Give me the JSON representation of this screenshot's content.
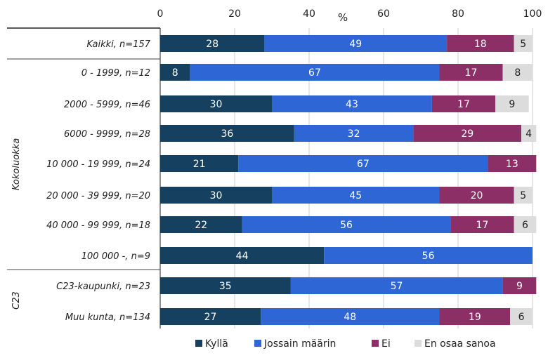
{
  "chart_data": {
    "type": "bar",
    "orientation": "horizontal",
    "stacked": true,
    "xlim": [
      0,
      100
    ],
    "xticks": [
      "0",
      "20",
      "40",
      "60",
      "80",
      "100"
    ],
    "unit": "%",
    "legend_position": "bottom",
    "groups": [
      {
        "label": "Kokoluokka",
        "categories": [
          "0 - 1999, n=12",
          "2000 - 5999, n=46",
          "6000 - 9999, n=28",
          "10 000 - 19 999, n=24",
          "20 000 - 39 999, n=20",
          "40 000 - 99 999, n=18",
          "100 000 -, n=9"
        ]
      },
      {
        "label": "C23",
        "categories": [
          "C23-kaupunki, n=23",
          "Muu kunta, n=134"
        ]
      }
    ],
    "categories": [
      "Kaikki, n=157",
      "0 - 1999, n=12",
      "2000 - 5999, n=46",
      "6000 - 9999, n=28",
      "10 000 - 19 999, n=24",
      "20 000 - 39 999, n=20",
      "40 000 - 99 999, n=18",
      "100 000 -, n=9",
      "C23-kaupunki, n=23",
      "Muu kunta, n=134"
    ],
    "series": [
      {
        "name": "Kyllä",
        "color": "#15405f",
        "label_color": "#ffffff",
        "values": [
          28,
          8,
          30,
          36,
          21,
          30,
          22,
          44,
          35,
          27
        ]
      },
      {
        "name": "Jossain määrin",
        "color": "#2f66d5",
        "label_color": "#ffffff",
        "values": [
          49,
          67,
          43,
          32,
          67,
          45,
          56,
          56,
          57,
          48
        ]
      },
      {
        "name": "Ei",
        "color": "#8c2f66",
        "label_color": "#ffffff",
        "values": [
          18,
          17,
          17,
          29,
          13,
          20,
          17,
          0,
          9,
          19
        ]
      },
      {
        "name": "En osaa sanoa",
        "color": "#dcdcdc",
        "label_color": "#222222",
        "values": [
          5,
          8,
          9,
          4,
          0,
          5,
          6,
          0,
          0,
          6
        ]
      }
    ]
  }
}
